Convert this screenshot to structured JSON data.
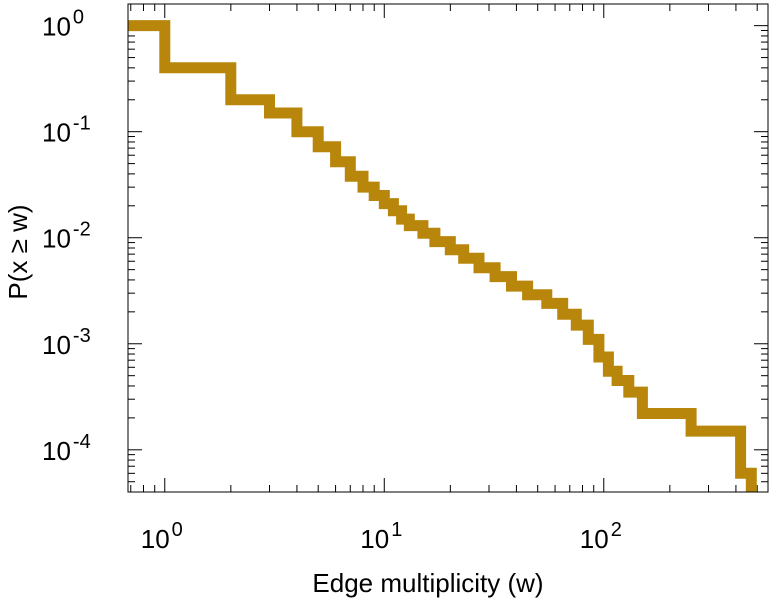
{
  "chart_data": {
    "type": "line",
    "subtype": "step-ccdf",
    "xscale": "log",
    "yscale": "log",
    "xlabel": "Edge multiplicity (w)",
    "ylabel": "P(x ≥ w)",
    "xlim": [
      0.68,
      560
    ],
    "ylim": [
      4e-05,
      1.6
    ],
    "x_ticks": [
      {
        "value": 1,
        "base": "10",
        "exp": "0"
      },
      {
        "value": 10,
        "base": "10",
        "exp": "1"
      },
      {
        "value": 100,
        "base": "10",
        "exp": "2"
      }
    ],
    "y_ticks": [
      {
        "value": 1,
        "base": "10",
        "exp": "0"
      },
      {
        "value": 0.1,
        "base": "10",
        "exp": "-1"
      },
      {
        "value": 0.01,
        "base": "10",
        "exp": "-2"
      },
      {
        "value": 0.001,
        "base": "10",
        "exp": "-3"
      },
      {
        "value": 0.0001,
        "base": "10",
        "exp": "-4"
      }
    ],
    "grid": false,
    "series": [
      {
        "name": "P(x ≥ w)",
        "color": "#b8860b",
        "x": [
          0.68,
          1,
          2,
          3,
          4,
          5,
          6,
          7,
          8,
          9,
          10,
          11,
          12,
          13,
          15,
          17,
          20,
          23,
          27,
          32,
          38,
          45,
          55,
          65,
          75,
          85,
          95,
          105,
          115,
          130,
          150,
          250,
          420,
          470
        ],
        "y": [
          1.0,
          0.4,
          0.2,
          0.15,
          0.1,
          0.072,
          0.052,
          0.038,
          0.03,
          0.025,
          0.021,
          0.018,
          0.015,
          0.013,
          0.011,
          0.0092,
          0.0077,
          0.0064,
          0.0052,
          0.0043,
          0.0035,
          0.0029,
          0.0024,
          0.0019,
          0.0015,
          0.0011,
          0.00075,
          0.00055,
          0.00045,
          0.00035,
          0.00022,
          0.00015,
          6e-05,
          4e-05
        ]
      }
    ]
  }
}
